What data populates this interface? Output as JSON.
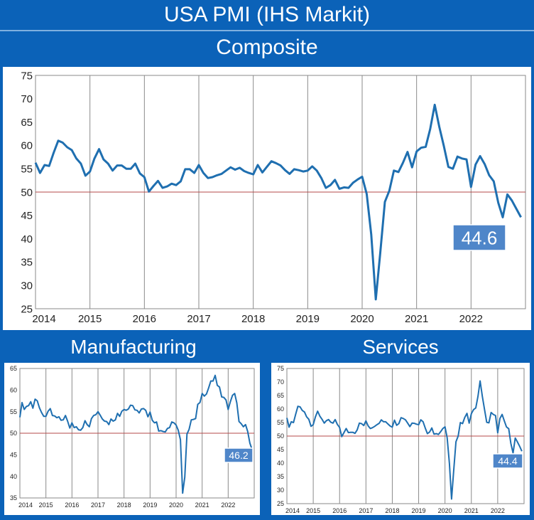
{
  "header": {
    "title": "USA PMI (IHS Markit)"
  },
  "chart_data": [
    {
      "type": "line",
      "title": "Composite",
      "x": [
        2014.0,
        2014.083,
        2014.167,
        2014.25,
        2014.333,
        2014.417,
        2014.5,
        2014.583,
        2014.667,
        2014.75,
        2014.833,
        2014.917,
        2015.0,
        2015.083,
        2015.167,
        2015.25,
        2015.333,
        2015.417,
        2015.5,
        2015.583,
        2015.667,
        2015.75,
        2015.833,
        2015.917,
        2016.0,
        2016.083,
        2016.167,
        2016.25,
        2016.333,
        2016.417,
        2016.5,
        2016.583,
        2016.667,
        2016.75,
        2016.833,
        2016.917,
        2017.0,
        2017.083,
        2017.167,
        2017.25,
        2017.333,
        2017.417,
        2017.5,
        2017.583,
        2017.667,
        2017.75,
        2017.833,
        2017.917,
        2018.0,
        2018.083,
        2018.167,
        2018.25,
        2018.333,
        2018.417,
        2018.5,
        2018.583,
        2018.667,
        2018.75,
        2018.833,
        2018.917,
        2019.0,
        2019.083,
        2019.167,
        2019.25,
        2019.333,
        2019.417,
        2019.5,
        2019.583,
        2019.667,
        2019.75,
        2019.833,
        2019.917,
        2020.0,
        2020.083,
        2020.167,
        2020.25,
        2020.333,
        2020.417,
        2020.5,
        2020.583,
        2020.667,
        2020.75,
        2020.833,
        2020.917,
        2021.0,
        2021.083,
        2021.167,
        2021.25,
        2021.333,
        2021.417,
        2021.5,
        2021.583,
        2021.667,
        2021.75,
        2021.833,
        2021.917,
        2022.0,
        2022.083,
        2022.167,
        2022.25,
        2022.333,
        2022.417,
        2022.5,
        2022.583,
        2022.667,
        2022.75,
        2022.833,
        2022.917
      ],
      "values": [
        56.3,
        54.1,
        55.8,
        55.6,
        58.4,
        61.0,
        60.6,
        59.6,
        59.0,
        57.2,
        56.1,
        53.5,
        54.4,
        57.2,
        59.2,
        57.0,
        56.1,
        54.6,
        55.7,
        55.7,
        55.0,
        55.0,
        56.1,
        54.0,
        53.2,
        50.1,
        51.3,
        52.4,
        50.9,
        51.2,
        51.8,
        51.5,
        52.3,
        54.9,
        54.9,
        54.1,
        55.8,
        54.1,
        53.0,
        53.2,
        53.6,
        53.9,
        54.6,
        55.3,
        54.8,
        55.2,
        54.5,
        54.1,
        53.8,
        55.8,
        54.2,
        55.4,
        56.6,
        56.2,
        55.7,
        54.7,
        53.9,
        54.9,
        54.7,
        54.4,
        54.6,
        55.5,
        54.6,
        53.0,
        50.9,
        51.5,
        52.6,
        50.7,
        51.0,
        50.9,
        52.0,
        52.7,
        53.3,
        49.6,
        40.9,
        27.0,
        37.0,
        47.9,
        50.3,
        54.6,
        54.3,
        56.3,
        58.6,
        55.3,
        58.7,
        59.5,
        59.7,
        63.5,
        68.7,
        64.0,
        59.9,
        55.4,
        55.0,
        57.6,
        57.2,
        57.0,
        51.1,
        55.9,
        57.7,
        56.0,
        53.6,
        52.3,
        47.7,
        44.6,
        49.5,
        48.2,
        46.4,
        44.6
      ],
      "ylim": [
        25,
        75
      ],
      "yticks": [
        25,
        30,
        35,
        40,
        45,
        50,
        55,
        60,
        65,
        70,
        75
      ],
      "xticks": [
        "2014",
        "2015",
        "2016",
        "2017",
        "2018",
        "2019",
        "2020",
        "2021",
        "2022"
      ],
      "reference_line": 50,
      "latest_label": "44.6",
      "colors": {
        "line": "#1f6fb0",
        "ref": "#b44a4a",
        "label_bg": "#4f86c9"
      }
    },
    {
      "type": "line",
      "title": "Manufacturing",
      "x": [
        2014.0,
        2014.083,
        2014.167,
        2014.25,
        2014.333,
        2014.417,
        2014.5,
        2014.583,
        2014.667,
        2014.75,
        2014.833,
        2014.917,
        2015.0,
        2015.083,
        2015.167,
        2015.25,
        2015.333,
        2015.417,
        2015.5,
        2015.583,
        2015.667,
        2015.75,
        2015.833,
        2015.917,
        2016.0,
        2016.083,
        2016.167,
        2016.25,
        2016.333,
        2016.417,
        2016.5,
        2016.583,
        2016.667,
        2016.75,
        2016.833,
        2016.917,
        2017.0,
        2017.083,
        2017.167,
        2017.25,
        2017.333,
        2017.417,
        2017.5,
        2017.583,
        2017.667,
        2017.75,
        2017.833,
        2017.917,
        2018.0,
        2018.083,
        2018.167,
        2018.25,
        2018.333,
        2018.417,
        2018.5,
        2018.583,
        2018.667,
        2018.75,
        2018.833,
        2018.917,
        2019.0,
        2019.083,
        2019.167,
        2019.25,
        2019.333,
        2019.417,
        2019.5,
        2019.583,
        2019.667,
        2019.75,
        2019.833,
        2019.917,
        2020.0,
        2020.083,
        2020.167,
        2020.25,
        2020.333,
        2020.417,
        2020.5,
        2020.583,
        2020.667,
        2020.75,
        2020.833,
        2020.917,
        2021.0,
        2021.083,
        2021.167,
        2021.25,
        2021.333,
        2021.417,
        2021.5,
        2021.583,
        2021.667,
        2021.75,
        2021.833,
        2021.917,
        2022.0,
        2022.083,
        2022.167,
        2022.25,
        2022.333,
        2022.417,
        2022.5,
        2022.583,
        2022.667,
        2022.75,
        2022.833,
        2022.917
      ],
      "values": [
        53.7,
        57.1,
        55.5,
        56.2,
        56.4,
        57.3,
        55.8,
        57.9,
        57.5,
        55.9,
        54.8,
        53.9,
        53.9,
        55.1,
        55.7,
        54.1,
        54.0,
        53.6,
        53.8,
        53.0,
        53.1,
        54.1,
        52.8,
        51.2,
        52.4,
        51.3,
        51.5,
        50.8,
        50.7,
        51.3,
        52.9,
        52.0,
        51.5,
        53.4,
        54.1,
        54.3,
        55.0,
        54.2,
        53.3,
        52.8,
        52.7,
        52.0,
        53.3,
        52.8,
        53.1,
        54.6,
        53.9,
        55.1,
        55.5,
        55.3,
        55.6,
        56.5,
        56.4,
        55.4,
        55.3,
        54.7,
        55.6,
        55.7,
        55.3,
        53.8,
        54.9,
        53.0,
        52.4,
        52.6,
        50.5,
        50.6,
        50.4,
        50.3,
        51.1,
        51.3,
        52.6,
        52.4,
        51.9,
        50.7,
        48.5,
        36.1,
        39.8,
        49.8,
        50.9,
        53.1,
        53.2,
        53.4,
        56.7,
        57.1,
        59.2,
        58.6,
        59.1,
        60.5,
        62.1,
        62.1,
        63.4,
        61.1,
        60.7,
        58.4,
        58.3,
        57.7,
        55.5,
        57.3,
        58.8,
        59.2,
        57.0,
        52.7,
        52.2,
        51.5,
        52.0,
        50.4,
        47.7,
        46.2
      ],
      "ylim": [
        35,
        65
      ],
      "yticks": [
        35,
        40,
        45,
        50,
        55,
        60,
        65
      ],
      "xticks": [
        "2014",
        "2015",
        "2016",
        "2017",
        "2018",
        "2019",
        "2020",
        "2021",
        "2022"
      ],
      "reference_line": 50,
      "latest_label": "46.2",
      "colors": {
        "line": "#1f6fb0",
        "ref": "#b44a4a",
        "label_bg": "#4f86c9"
      }
    },
    {
      "type": "line",
      "title": "Services",
      "x": [
        2014.0,
        2014.083,
        2014.167,
        2014.25,
        2014.333,
        2014.417,
        2014.5,
        2014.583,
        2014.667,
        2014.75,
        2014.833,
        2014.917,
        2015.0,
        2015.083,
        2015.167,
        2015.25,
        2015.333,
        2015.417,
        2015.5,
        2015.583,
        2015.667,
        2015.75,
        2015.833,
        2015.917,
        2016.0,
        2016.083,
        2016.167,
        2016.25,
        2016.333,
        2016.417,
        2016.5,
        2016.583,
        2016.667,
        2016.75,
        2016.833,
        2016.917,
        2017.0,
        2017.083,
        2017.167,
        2017.25,
        2017.333,
        2017.417,
        2017.5,
        2017.583,
        2017.667,
        2017.75,
        2017.833,
        2017.917,
        2018.0,
        2018.083,
        2018.167,
        2018.25,
        2018.333,
        2018.417,
        2018.5,
        2018.583,
        2018.667,
        2018.75,
        2018.833,
        2018.917,
        2019.0,
        2019.083,
        2019.167,
        2019.25,
        2019.333,
        2019.417,
        2019.5,
        2019.583,
        2019.667,
        2019.75,
        2019.833,
        2019.917,
        2020.0,
        2020.083,
        2020.167,
        2020.25,
        2020.333,
        2020.417,
        2020.5,
        2020.583,
        2020.667,
        2020.75,
        2020.833,
        2020.917,
        2021.0,
        2021.083,
        2021.167,
        2021.25,
        2021.333,
        2021.417,
        2021.5,
        2021.583,
        2021.667,
        2021.75,
        2021.833,
        2021.917,
        2022.0,
        2022.083,
        2022.167,
        2022.25,
        2022.333,
        2022.417,
        2022.5,
        2022.583,
        2022.667,
        2022.75,
        2022.833,
        2022.917
      ],
      "values": [
        56.7,
        53.3,
        55.3,
        55.0,
        58.1,
        61.0,
        60.8,
        59.5,
        58.9,
        57.1,
        56.2,
        53.6,
        54.2,
        57.1,
        59.2,
        57.4,
        56.2,
        54.8,
        55.7,
        56.1,
        55.1,
        54.8,
        56.1,
        54.3,
        53.2,
        49.8,
        51.3,
        52.8,
        51.3,
        51.4,
        51.4,
        51.0,
        52.3,
        54.8,
        54.6,
        53.9,
        55.6,
        53.8,
        52.8,
        53.1,
        53.6,
        54.2,
        54.7,
        56.0,
        55.3,
        55.3,
        54.5,
        53.7,
        53.3,
        55.9,
        54.0,
        54.6,
        56.8,
        56.5,
        56.0,
        54.8,
        53.5,
        54.8,
        54.7,
        54.4,
        54.2,
        56.0,
        55.3,
        53.0,
        50.9,
        51.5,
        53.0,
        50.7,
        50.9,
        50.6,
        51.6,
        52.8,
        53.4,
        49.4,
        39.8,
        26.7,
        37.5,
        47.9,
        50.0,
        55.0,
        54.6,
        56.9,
        58.4,
        54.8,
        58.3,
        59.8,
        60.4,
        64.7,
        70.4,
        64.6,
        59.9,
        55.1,
        54.9,
        58.7,
        58.0,
        57.6,
        51.2,
        56.5,
        58.0,
        55.6,
        53.4,
        52.7,
        47.3,
        43.7,
        49.3,
        47.8,
        46.2,
        44.4
      ],
      "ylim": [
        25,
        75
      ],
      "yticks": [
        25,
        30,
        35,
        40,
        45,
        50,
        55,
        60,
        65,
        70,
        75
      ],
      "xticks": [
        "2014",
        "2015",
        "2016",
        "2017",
        "2018",
        "2019",
        "2020",
        "2021",
        "2022"
      ],
      "reference_line": 50,
      "latest_label": "44.4",
      "colors": {
        "line": "#1f6fb0",
        "ref": "#b44a4a",
        "label_bg": "#4f86c9"
      }
    }
  ]
}
